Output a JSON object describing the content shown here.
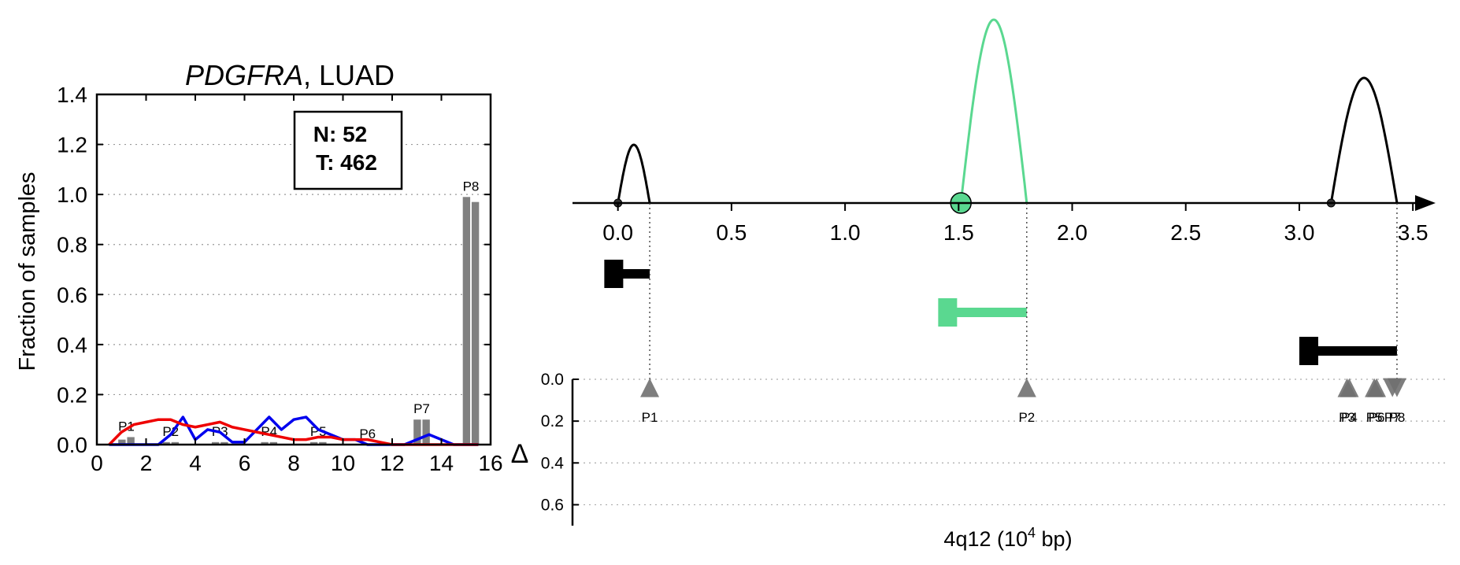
{
  "chart_data": [
    {
      "type": "bar",
      "title": "PDGFRA, LUAD",
      "title_gene": "PDGFRA",
      "title_rest": ", LUAD",
      "ylabel": "Fraction of samples",
      "xlabel": "",
      "xlim": [
        0,
        16
      ],
      "ylim": [
        0,
        1.4
      ],
      "xticks": [
        "0",
        "2",
        "4",
        "6",
        "8",
        "10",
        "12",
        "14",
        "16"
      ],
      "yticks": [
        "0.0",
        "0.2",
        "0.4",
        "0.6",
        "0.8",
        "1.0",
        "1.2",
        "1.4"
      ],
      "grid": "horizontal dotted",
      "legend_box": {
        "line1": "N: 52",
        "line2": "T: 462"
      },
      "bar_groups": [
        {
          "label": "P1",
          "x": 1.2,
          "values": [
            0.02,
            0.03
          ]
        },
        {
          "label": "P2",
          "x": 3.0,
          "values": [
            0.01,
            0.01
          ]
        },
        {
          "label": "P3",
          "x": 5.0,
          "values": [
            0.01,
            0.01
          ]
        },
        {
          "label": "P4",
          "x": 7.0,
          "values": [
            0.01,
            0.01
          ]
        },
        {
          "label": "P5",
          "x": 9.0,
          "values": [
            0.01,
            0.01
          ]
        },
        {
          "label": "P6",
          "x": 11.0,
          "values": [
            0.0,
            0.0
          ]
        },
        {
          "label": "P7",
          "x": 13.2,
          "values": [
            0.1,
            0.1
          ]
        },
        {
          "label": "P8",
          "x": 15.2,
          "values": [
            0.99,
            0.97
          ]
        }
      ],
      "series": [
        {
          "name": "N",
          "color": "#0000ee",
          "x": [
            0.5,
            1.0,
            1.5,
            2.0,
            2.5,
            3.0,
            3.5,
            4.0,
            4.5,
            5.0,
            5.5,
            6.0,
            6.5,
            7.0,
            7.5,
            8.0,
            8.5,
            9.0,
            9.5,
            10.0,
            10.5,
            11.0,
            11.5,
            12.0,
            12.5,
            13.0,
            13.5,
            14.0,
            14.5,
            15.0,
            15.5
          ],
          "y": [
            0,
            0,
            0,
            0,
            0,
            0.04,
            0.11,
            0.02,
            0.06,
            0.05,
            0.01,
            0.01,
            0.06,
            0.11,
            0.06,
            0.1,
            0.11,
            0.06,
            0.04,
            0.02,
            0.02,
            0.0,
            0.0,
            0.0,
            0.0,
            0.02,
            0.04,
            0.02,
            0.0,
            0.0,
            0.0
          ]
        },
        {
          "name": "T",
          "color": "#ee0000",
          "x": [
            0.5,
            1.0,
            1.5,
            2.0,
            2.5,
            3.0,
            3.5,
            4.0,
            4.5,
            5.0,
            5.5,
            6.0,
            6.5,
            7.0,
            7.5,
            8.0,
            8.5,
            9.0,
            9.5,
            10.0,
            10.5,
            11.0,
            11.5,
            12.0,
            12.5,
            13.0,
            13.5,
            14.0,
            14.5,
            15.0,
            15.5
          ],
          "y": [
            0,
            0.05,
            0.08,
            0.09,
            0.1,
            0.1,
            0.08,
            0.07,
            0.08,
            0.09,
            0.07,
            0.06,
            0.05,
            0.04,
            0.03,
            0.02,
            0.02,
            0.03,
            0.03,
            0.02,
            0.02,
            0.02,
            0.01,
            0.0,
            0.0,
            0.0,
            0.0,
            0.0,
            0.0,
            0.0,
            0.0
          ]
        }
      ]
    },
    {
      "type": "diagram",
      "xlabel_main": "4q12 (10",
      "xlabel_sup": "4",
      "xlabel_tail": " bp)",
      "xlim": [
        -0.2,
        3.6
      ],
      "xticks": [
        "0.0",
        "0.5",
        "1.0",
        "1.5",
        "2.0",
        "2.5",
        "3.0",
        "3.5"
      ],
      "arcs": [
        {
          "start": 0.0,
          "end": 0.14,
          "height": 0.27,
          "color": "#000000",
          "start_marker": "dot"
        },
        {
          "start": 1.51,
          "end": 1.8,
          "height": 0.85,
          "color": "#5ad890",
          "start_marker": "circle"
        },
        {
          "start": 3.14,
          "end": 3.43,
          "height": 0.58,
          "color": "#000000",
          "start_marker": "dot"
        }
      ],
      "segments": [
        {
          "start": -0.06,
          "end": 0.14,
          "level": 0.0,
          "color": "#000000"
        },
        {
          "start": 1.41,
          "end": 1.8,
          "level": 1.0,
          "color": "#5ad890"
        },
        {
          "start": 3.0,
          "end": 3.43,
          "level": 2.0,
          "color": "#000000"
        }
      ],
      "delta_axis_label": "Δ",
      "delta_ticks": [
        "0.0",
        "0.2",
        "0.4",
        "0.6"
      ],
      "delta_ylim": [
        0,
        0.7
      ],
      "peaks": [
        {
          "label": "P1",
          "x": 0.14,
          "delta": 0.01,
          "dir": "up"
        },
        {
          "label": "P2",
          "x": 1.8,
          "delta": 0.01,
          "dir": "up"
        },
        {
          "label": "P3",
          "x": 3.21,
          "delta": 0.01,
          "dir": "up"
        },
        {
          "label": "P4",
          "x": 3.22,
          "delta": 0.01,
          "dir": "up"
        },
        {
          "label": "P5",
          "x": 3.33,
          "delta": 0.01,
          "dir": "up"
        },
        {
          "label": "P6",
          "x": 3.34,
          "delta": 0.01,
          "dir": "up"
        },
        {
          "label": "P7",
          "x": 3.41,
          "delta": 0.01,
          "dir": "down"
        },
        {
          "label": "P8",
          "x": 3.43,
          "delta": 0.01,
          "dir": "down"
        }
      ]
    }
  ]
}
